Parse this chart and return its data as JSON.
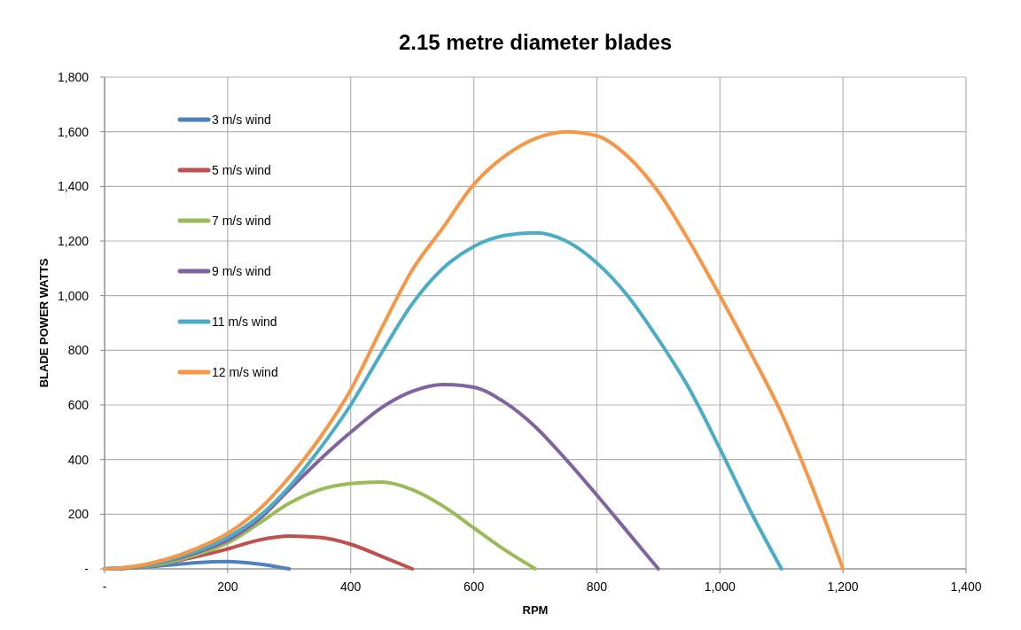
{
  "chart_data": {
    "type": "line",
    "title": "2.15 metre diameter blades",
    "xlabel": "RPM",
    "ylabel": "BLADE POWER WATTS",
    "xlim": [
      0,
      1400
    ],
    "xticks": [
      {
        "value": 0,
        "label": "-"
      },
      {
        "value": 200,
        "label": "200"
      },
      {
        "value": 400,
        "label": "400"
      },
      {
        "value": 600,
        "label": "600"
      },
      {
        "value": 800,
        "label": "800"
      },
      {
        "value": 1000,
        "label": "1,000"
      },
      {
        "value": 1200,
        "label": "1,200"
      },
      {
        "value": 1400,
        "label": "1,400"
      }
    ],
    "ylim": [
      0,
      1800
    ],
    "yticks": [
      {
        "value": 0,
        "label": "-"
      },
      {
        "value": 200,
        "label": "200"
      },
      {
        "value": 400,
        "label": "400"
      },
      {
        "value": 600,
        "label": "600"
      },
      {
        "value": 800,
        "label": "800"
      },
      {
        "value": 1000,
        "label": "1,000"
      },
      {
        "value": 1200,
        "label": "1,200"
      },
      {
        "value": 1400,
        "label": "1,400"
      },
      {
        "value": 1600,
        "label": "1,600"
      },
      {
        "value": 1800,
        "label": "1,800"
      }
    ],
    "grid": true,
    "legend": "top left",
    "marker": "none",
    "line_style": "solid",
    "series": [
      {
        "name": "3 m/s wind",
        "color": "#4f81bd",
        "x": [
          0,
          50,
          100,
          150,
          200,
          250,
          300
        ],
        "values": [
          0,
          4,
          13,
          23,
          27,
          18,
          0
        ]
      },
      {
        "name": "5 m/s wind",
        "color": "#c0504d",
        "x": [
          0,
          50,
          100,
          150,
          200,
          250,
          300,
          350,
          400,
          450,
          500
        ],
        "values": [
          0,
          5,
          22,
          45,
          73,
          105,
          120,
          115,
          90,
          46,
          0
        ]
      },
      {
        "name": "7 m/s wind",
        "color": "#9bbb59",
        "x": [
          0,
          50,
          100,
          150,
          200,
          250,
          300,
          350,
          400,
          450,
          500,
          550,
          600,
          650,
          700
        ],
        "values": [
          0,
          6,
          22,
          52,
          95,
          165,
          240,
          290,
          312,
          318,
          290,
          230,
          150,
          70,
          0
        ]
      },
      {
        "name": "9 m/s wind",
        "color": "#8064a2",
        "x": [
          0,
          50,
          100,
          150,
          200,
          250,
          300,
          350,
          400,
          450,
          500,
          550,
          600,
          650,
          700,
          750,
          800,
          850,
          900
        ],
        "values": [
          0,
          7,
          28,
          60,
          105,
          180,
          290,
          400,
          500,
          590,
          650,
          675,
          665,
          610,
          520,
          400,
          270,
          135,
          0
        ]
      },
      {
        "name": "11 m/s wind",
        "color": "#4bacc6",
        "x": [
          0,
          50,
          100,
          150,
          200,
          250,
          300,
          350,
          400,
          450,
          500,
          550,
          600,
          650,
          700,
          750,
          800,
          850,
          900,
          950,
          1000,
          1050,
          1100
        ],
        "values": [
          0,
          8,
          30,
          65,
          115,
          190,
          300,
          440,
          600,
          790,
          970,
          1100,
          1180,
          1220,
          1230,
          1200,
          1120,
          1000,
          840,
          660,
          440,
          210,
          0
        ]
      },
      {
        "name": "12 m/s wind",
        "color": "#f79646",
        "x": [
          0,
          50,
          100,
          150,
          200,
          250,
          300,
          350,
          400,
          450,
          500,
          550,
          600,
          650,
          700,
          750,
          800,
          850,
          900,
          950,
          1000,
          1050,
          1100,
          1150,
          1200
        ],
        "values": [
          0,
          10,
          35,
          75,
          130,
          215,
          335,
          480,
          655,
          880,
          1094,
          1249,
          1407,
          1510,
          1575,
          1600,
          1585,
          1510,
          1380,
          1200,
          1000,
          790,
          570,
          300,
          0
        ]
      }
    ]
  }
}
